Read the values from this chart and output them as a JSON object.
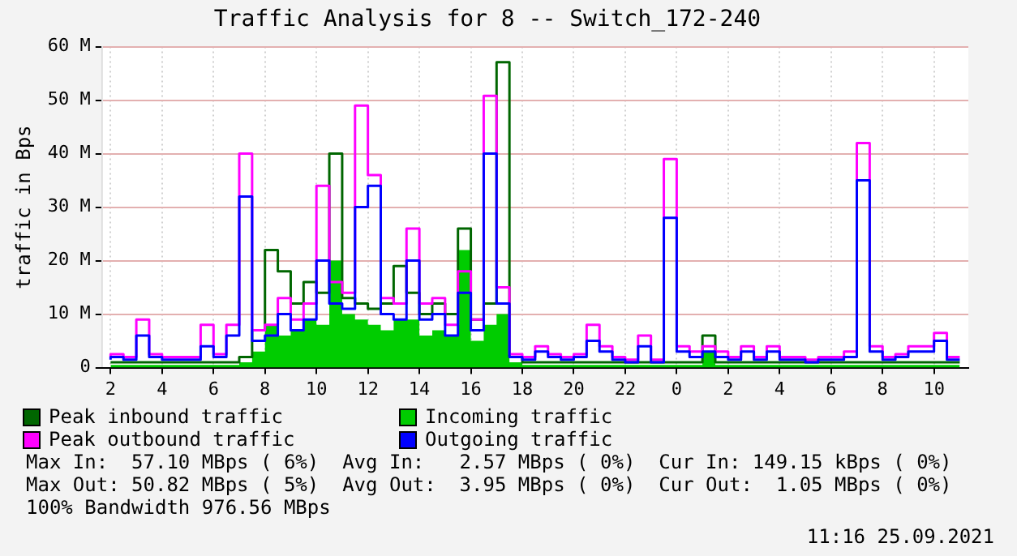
{
  "chart_data": {
    "type": "step",
    "title": "Traffic Analysis for 8 -- Switch_172-240",
    "ylabel": "traffic in Bps",
    "x": [
      "2021-09-24T02:00",
      "2021-09-24T02:30",
      "2021-09-24T03:00",
      "2021-09-24T03:30",
      "2021-09-24T04:00",
      "2021-09-24T04:30",
      "2021-09-24T05:00",
      "2021-09-24T05:30",
      "2021-09-24T06:00",
      "2021-09-24T06:30",
      "2021-09-24T07:00",
      "2021-09-24T07:30",
      "2021-09-24T08:00",
      "2021-09-24T08:30",
      "2021-09-24T09:00",
      "2021-09-24T09:30",
      "2021-09-24T10:00",
      "2021-09-24T10:30",
      "2021-09-24T11:00",
      "2021-09-24T11:30",
      "2021-09-24T12:00",
      "2021-09-24T12:30",
      "2021-09-24T13:00",
      "2021-09-24T13:30",
      "2021-09-24T14:00",
      "2021-09-24T14:30",
      "2021-09-24T15:00",
      "2021-09-24T15:30",
      "2021-09-24T16:00",
      "2021-09-24T16:30",
      "2021-09-24T17:00",
      "2021-09-24T17:30",
      "2021-09-24T18:00",
      "2021-09-24T18:30",
      "2021-09-24T19:00",
      "2021-09-24T19:30",
      "2021-09-24T20:00",
      "2021-09-24T20:30",
      "2021-09-24T21:00",
      "2021-09-24T21:30",
      "2021-09-24T22:00",
      "2021-09-24T22:30",
      "2021-09-24T23:00",
      "2021-09-24T23:30",
      "2021-09-25T00:00",
      "2021-09-25T00:30",
      "2021-09-25T01:00",
      "2021-09-25T01:30",
      "2021-09-25T02:00",
      "2021-09-25T02:30",
      "2021-09-25T03:00",
      "2021-09-25T03:30",
      "2021-09-25T04:00",
      "2021-09-25T04:30",
      "2021-09-25T05:00",
      "2021-09-25T05:30",
      "2021-09-25T06:00",
      "2021-09-25T06:30",
      "2021-09-25T07:00",
      "2021-09-25T07:30",
      "2021-09-25T08:00",
      "2021-09-25T08:30",
      "2021-09-25T09:00",
      "2021-09-25T09:30",
      "2021-09-25T10:00",
      "2021-09-25T10:30",
      "2021-09-25T11:00"
    ],
    "series": [
      {
        "name": "Incoming traffic",
        "type": "area",
        "color": "#00cc00",
        "values": [
          0.5,
          0.5,
          0.5,
          0.5,
          0.5,
          0.5,
          0.5,
          0.5,
          0.5,
          0.5,
          0.5,
          1,
          3,
          8,
          6,
          7,
          9,
          8,
          20,
          10,
          9,
          8,
          7,
          9,
          9,
          6,
          7,
          6,
          22,
          5,
          8,
          10,
          1,
          0.5,
          0.5,
          0.5,
          0.5,
          0.5,
          0.5,
          0.5,
          0.5,
          0.5,
          0.5,
          0.5,
          0.5,
          0.5,
          0.5,
          3,
          0.5,
          0.5,
          0.5,
          0.5,
          0.5,
          0.5,
          0.5,
          0.5,
          0.5,
          0.5,
          0.5,
          0.5,
          0.5,
          0.5,
          0.5,
          0.5,
          0.5,
          0.5,
          0.5
        ]
      },
      {
        "name": "Peak inbound traffic",
        "color": "#006600",
        "values": [
          1,
          1,
          1,
          1,
          1,
          1,
          1,
          1,
          1,
          1,
          1,
          2,
          7,
          22,
          18,
          12,
          16,
          14,
          40,
          13,
          12,
          11,
          12,
          19,
          14,
          10,
          12,
          10,
          26,
          9,
          12,
          57.1,
          2,
          1,
          1,
          1,
          1,
          1,
          1,
          1,
          1,
          1,
          1,
          1,
          1,
          1,
          1,
          6,
          1,
          1,
          1,
          1,
          1,
          1,
          1,
          1,
          1,
          1,
          1,
          1,
          1,
          1,
          1,
          1,
          1,
          1,
          1
        ]
      },
      {
        "name": "Peak outbound traffic",
        "color": "#ff00ff",
        "values": [
          2,
          2.5,
          2,
          9,
          2.5,
          2,
          2,
          2,
          8,
          2.5,
          8,
          40,
          7,
          8,
          13,
          9,
          12,
          34,
          16,
          14,
          49,
          36,
          13,
          12,
          26,
          12,
          13,
          8,
          18,
          9,
          50.8,
          15,
          2.5,
          2,
          4,
          2.5,
          2,
          2.5,
          8,
          4,
          2,
          1.5,
          6,
          1.5,
          39,
          4,
          3,
          4,
          3,
          2,
          4,
          2,
          4,
          2,
          2,
          1.5,
          2,
          2,
          3,
          42,
          4,
          2,
          2.5,
          4,
          4,
          6.5,
          2
        ]
      },
      {
        "name": "Outgoing traffic",
        "color": "#0000ff",
        "values": [
          1.5,
          2,
          1.5,
          6,
          2,
          1.5,
          1.5,
          1.5,
          4,
          2,
          6,
          32,
          5,
          6,
          10,
          7,
          9,
          20,
          12,
          11,
          30,
          34,
          10,
          9,
          20,
          9,
          10,
          6,
          14,
          7,
          40,
          12,
          2,
          1.5,
          3,
          2,
          1.5,
          2,
          5,
          3,
          1.5,
          1,
          4,
          1,
          28,
          3,
          2,
          3,
          2,
          1.5,
          3,
          1.5,
          3,
          1.5,
          1.5,
          1,
          1.5,
          1.5,
          2,
          35,
          3,
          1.5,
          2,
          3,
          3,
          5,
          1.5
        ]
      }
    ],
    "xlim": [
      "2021-09-24T01:40",
      "2021-09-25T11:20"
    ],
    "xticks": [
      {
        "value": "2021-09-24T02:00",
        "label": "2"
      },
      {
        "value": "2021-09-24T04:00",
        "label": "4"
      },
      {
        "value": "2021-09-24T06:00",
        "label": "6"
      },
      {
        "value": "2021-09-24T08:00",
        "label": "8"
      },
      {
        "value": "2021-09-24T10:00",
        "label": "10"
      },
      {
        "value": "2021-09-24T12:00",
        "label": "12"
      },
      {
        "value": "2021-09-24T14:00",
        "label": "14"
      },
      {
        "value": "2021-09-24T16:00",
        "label": "16"
      },
      {
        "value": "2021-09-24T18:00",
        "label": "18"
      },
      {
        "value": "2021-09-24T20:00",
        "label": "20"
      },
      {
        "value": "2021-09-24T22:00",
        "label": "22"
      },
      {
        "value": "2021-09-25T00:00",
        "label": "0"
      },
      {
        "value": "2021-09-25T02:00",
        "label": "2"
      },
      {
        "value": "2021-09-25T04:00",
        "label": "4"
      },
      {
        "value": "2021-09-25T06:00",
        "label": "6"
      },
      {
        "value": "2021-09-25T08:00",
        "label": "8"
      },
      {
        "value": "2021-09-25T10:00",
        "label": "10"
      }
    ],
    "ylim": [
      0,
      60
    ],
    "yticks": [
      0,
      {
        "value": 10,
        "label": "10 M"
      },
      {
        "value": 20,
        "label": "20 M"
      },
      {
        "value": 30,
        "label": "30 M"
      },
      {
        "value": 40,
        "label": "40 M"
      },
      {
        "value": 50,
        "label": "50 M"
      },
      {
        "value": 60,
        "label": "60 M"
      }
    ],
    "grid": true,
    "legend": "bottom",
    "annotations": [
      "Max In:  57.10 MBps ( 6%)  Avg In:   2.57 MBps ( 0%)  Cur In: 149.15 kBps ( 0%)",
      "Max Out: 50.82 MBps ( 5%)  Avg Out:  3.95 MBps ( 0%)  Cur Out:  1.05 MBps ( 0%)",
      "100% Bandwidth 976.56 MBps",
      "11:16 25.09.2021"
    ]
  }
}
